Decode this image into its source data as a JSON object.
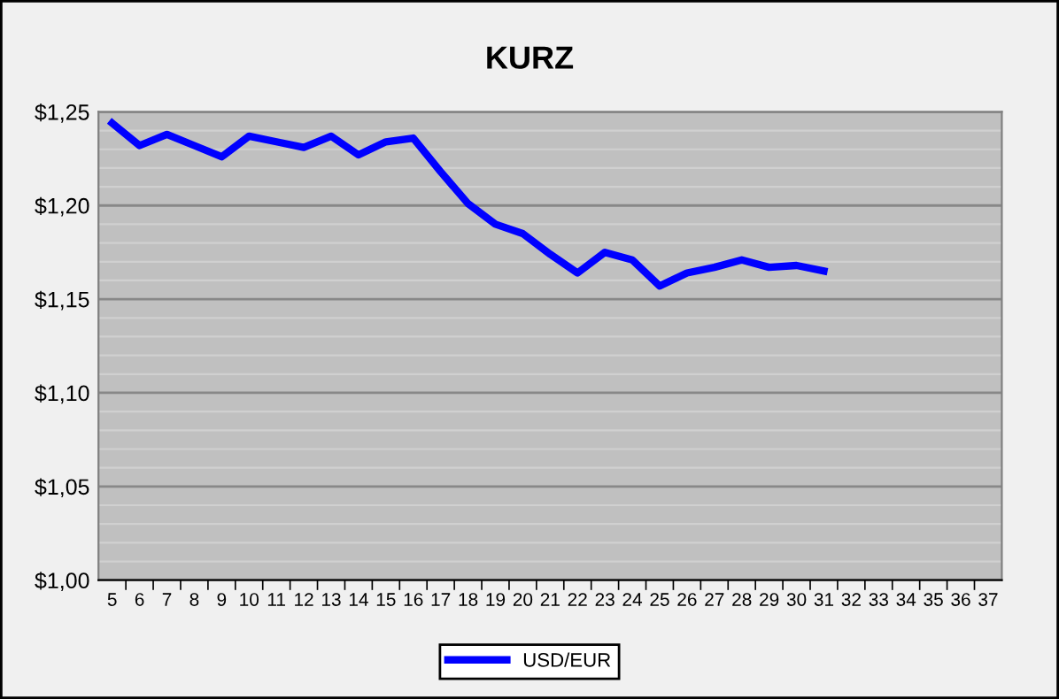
{
  "chart_data": {
    "type": "line",
    "title": "KURZ",
    "categories": [
      "5",
      "6",
      "7",
      "8",
      "9",
      "10",
      "11",
      "12",
      "13",
      "14",
      "15",
      "16",
      "17",
      "18",
      "19",
      "20",
      "21",
      "22",
      "23",
      "24",
      "25",
      "26",
      "27",
      "28",
      "29",
      "30",
      "31",
      "32",
      "33",
      "34",
      "35",
      "36",
      "37"
    ],
    "series": [
      {
        "name": "USD/EUR",
        "color": "#0000ff",
        "values": [
          1.244,
          1.232,
          1.238,
          1.232,
          1.226,
          1.237,
          1.234,
          1.231,
          1.237,
          1.227,
          1.234,
          1.236,
          1.218,
          1.201,
          1.19,
          1.185,
          1.174,
          1.164,
          1.175,
          1.171,
          1.157,
          1.164,
          1.167,
          1.171,
          1.167,
          1.168,
          1.165,
          null,
          null,
          null,
          null,
          null,
          null
        ]
      }
    ],
    "ylim": [
      1.0,
      1.25
    ],
    "yticks": [
      {
        "value": 1.0,
        "label": "$1,00"
      },
      {
        "value": 1.01,
        "label": null
      },
      {
        "value": 1.02,
        "label": null
      },
      {
        "value": 1.03,
        "label": null
      },
      {
        "value": 1.04,
        "label": null
      },
      {
        "value": 1.05,
        "label": "$1,05"
      },
      {
        "value": 1.06,
        "label": null
      },
      {
        "value": 1.07,
        "label": null
      },
      {
        "value": 1.08,
        "label": null
      },
      {
        "value": 1.09,
        "label": null
      },
      {
        "value": 1.1,
        "label": "$1,10"
      },
      {
        "value": 1.11,
        "label": null
      },
      {
        "value": 1.12,
        "label": null
      },
      {
        "value": 1.13,
        "label": null
      },
      {
        "value": 1.14,
        "label": null
      },
      {
        "value": 1.15,
        "label": "$1,15"
      },
      {
        "value": 1.16,
        "label": null
      },
      {
        "value": 1.17,
        "label": null
      },
      {
        "value": 1.18,
        "label": null
      },
      {
        "value": 1.19,
        "label": null
      },
      {
        "value": 1.2,
        "label": "$1,20"
      },
      {
        "value": 1.21,
        "label": null
      },
      {
        "value": 1.22,
        "label": null
      },
      {
        "value": 1.23,
        "label": null
      },
      {
        "value": 1.24,
        "label": null
      },
      {
        "value": 1.25,
        "label": "$1,25"
      }
    ],
    "grid": "y",
    "legend": "bottom",
    "marker": "none",
    "line_style": "solid"
  }
}
